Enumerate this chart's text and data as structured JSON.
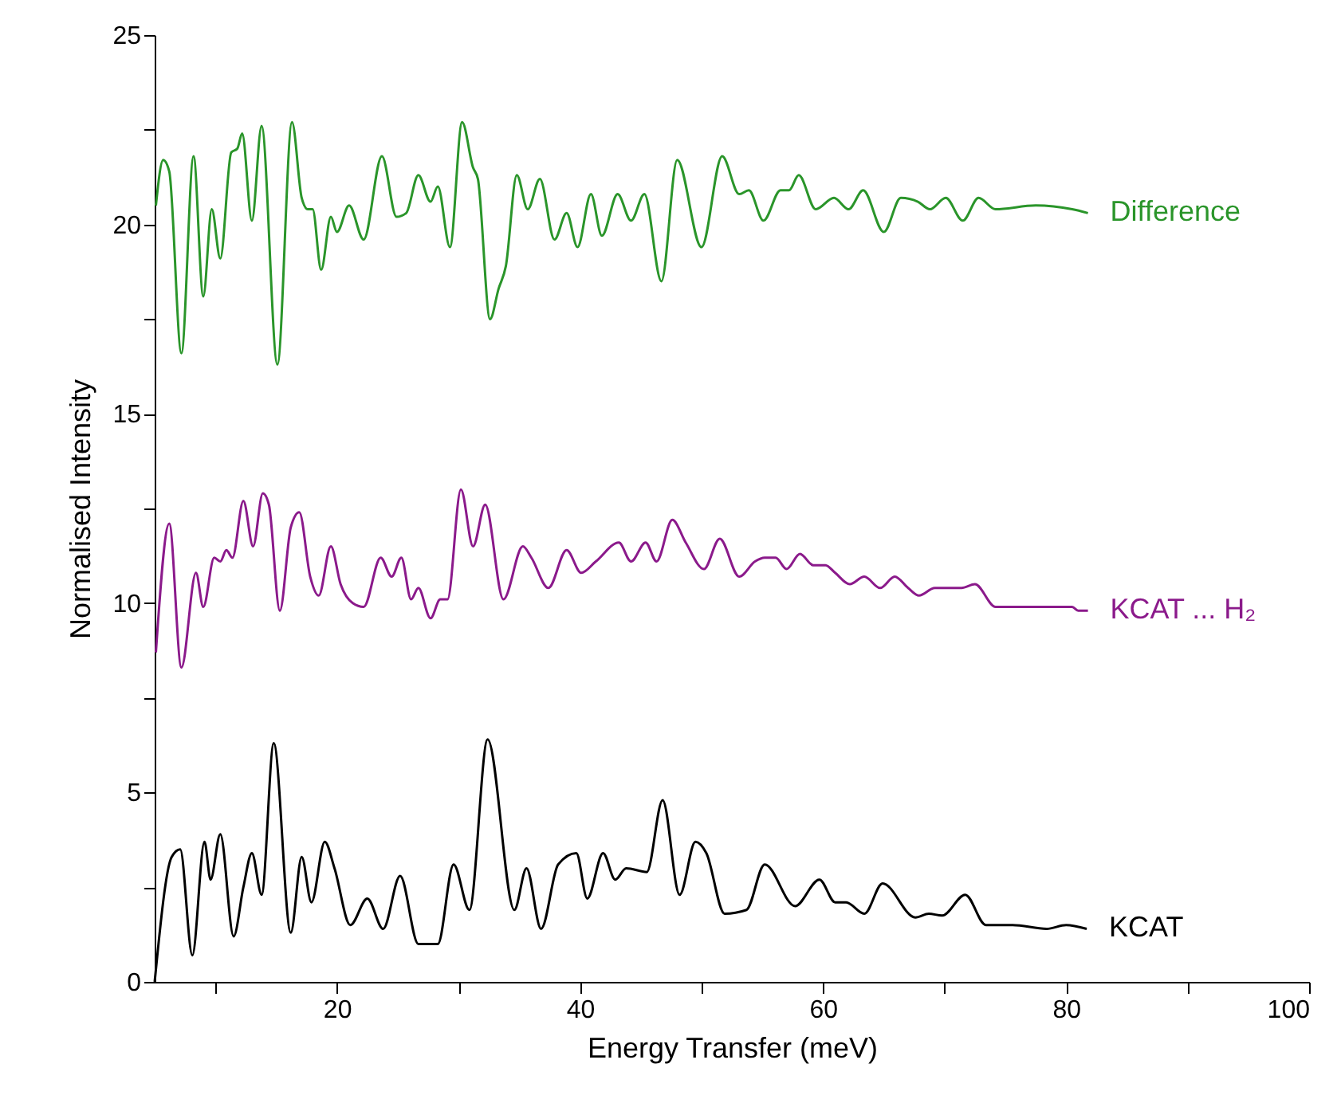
{
  "chart_data": {
    "type": "line",
    "xlabel": "Energy Transfer (meV)",
    "ylabel": "Normalised Intensity",
    "xlim": [
      5,
      100
    ],
    "ylim": [
      0,
      25
    ],
    "xticks": [
      {
        "value": 10,
        "label": null
      },
      20,
      {
        "value": 30,
        "label": null
      },
      40,
      {
        "value": 50,
        "label": null
      },
      60,
      {
        "value": 70,
        "label": null
      },
      80,
      {
        "value": 90,
        "label": null
      },
      100
    ],
    "yticks": [
      0,
      {
        "value": 2.5,
        "label": null
      },
      5,
      {
        "value": 7.5,
        "label": null
      },
      10,
      {
        "value": 12.5,
        "label": null
      },
      15,
      {
        "value": 17.5,
        "label": null
      },
      20,
      {
        "value": 22.5,
        "label": null
      },
      25
    ],
    "grid": false,
    "marker": "none",
    "line_style": "solid",
    "series": [
      {
        "name": "KCAT",
        "color": "#000000",
        "x": [
          5,
          6.4,
          7.1,
          8.1,
          9.1,
          9.6,
          10.4,
          11.5,
          12.3,
          13.0,
          13.8,
          14.8,
          16.2,
          17.1,
          17.9,
          19.0,
          19.8,
          21.1,
          22.5,
          23.8,
          25.2,
          26.7,
          28.3,
          29.6,
          30.9,
          32.4,
          34.6,
          35.6,
          36.8,
          38.2,
          39.7,
          40.6,
          41.9,
          42.9,
          43.8,
          45.5,
          46.8,
          48.2,
          49.5,
          50.4,
          51.9,
          53.7,
          55.2,
          57.7,
          59.7,
          61.0,
          61.9,
          63.4,
          64.9,
          67.6,
          68.7,
          69.8,
          71.7,
          73.4,
          75.6,
          78.4,
          80.0,
          81.7
        ],
        "values": [
          0,
          3.3,
          3.5,
          0.7,
          3.7,
          2.7,
          3.9,
          1.2,
          2.5,
          3.4,
          2.3,
          6.3,
          1.3,
          3.3,
          2.1,
          3.7,
          3.0,
          1.5,
          2.2,
          1.4,
          2.8,
          1.0,
          1.0,
          3.1,
          1.9,
          6.4,
          1.9,
          3.0,
          1.4,
          3.1,
          3.4,
          2.2,
          3.4,
          2.7,
          3.0,
          2.9,
          4.8,
          2.3,
          3.7,
          3.4,
          1.8,
          1.9,
          3.1,
          2.0,
          2.7,
          2.1,
          2.1,
          1.8,
          2.6,
          1.7,
          1.8,
          1.75,
          2.3,
          1.5,
          1.5,
          1.4,
          1.5,
          1.4
        ]
      },
      {
        "name": "KCAT ... H₂",
        "color": "#8b1a8b",
        "x": [
          5.1,
          6.2,
          7.2,
          8.4,
          9.0,
          9.9,
          10.4,
          10.9,
          11.4,
          12.3,
          13.1,
          13.9,
          14.4,
          15.3,
          16.2,
          16.9,
          17.8,
          18.5,
          19.5,
          20.3,
          21.3,
          22.2,
          23.6,
          24.5,
          25.3,
          26.1,
          26.7,
          27.7,
          28.5,
          29.1,
          30.2,
          31.2,
          32.2,
          33.7,
          35.3,
          36.0,
          37.4,
          38.9,
          40.1,
          41.3,
          43.2,
          44.2,
          45.4,
          46.3,
          47.6,
          48.7,
          50.2,
          51.5,
          53.1,
          54.4,
          55.2,
          56.1,
          57.0,
          58.1,
          59.2,
          60.2,
          61.0,
          62.2,
          63.4,
          64.7,
          65.9,
          67.0,
          67.9,
          69.2,
          71.4,
          72.5,
          74.2,
          80.5,
          81.0,
          81.8
        ],
        "values": [
          8.7,
          12.1,
          8.3,
          10.8,
          9.9,
          11.2,
          11.1,
          11.4,
          11.2,
          12.7,
          11.5,
          12.9,
          12.6,
          9.8,
          12.0,
          12.4,
          10.7,
          10.2,
          11.5,
          10.5,
          10.0,
          9.9,
          11.2,
          10.7,
          11.2,
          10.1,
          10.4,
          9.6,
          10.1,
          10.1,
          13.0,
          11.5,
          12.6,
          10.1,
          11.5,
          11.2,
          10.4,
          11.4,
          10.8,
          11.1,
          11.6,
          11.1,
          11.6,
          11.1,
          12.2,
          11.6,
          10.9,
          11.7,
          10.7,
          11.1,
          11.2,
          11.2,
          10.9,
          11.3,
          11.0,
          11.0,
          10.8,
          10.5,
          10.7,
          10.4,
          10.7,
          10.4,
          10.2,
          10.4,
          10.4,
          10.5,
          9.9,
          9.9,
          9.8,
          9.8
        ]
      },
      {
        "name": "Difference",
        "color": "#2a952a",
        "x": [
          5.1,
          5.7,
          6.2,
          7.2,
          8.2,
          9.0,
          9.7,
          10.4,
          11.3,
          11.8,
          12.2,
          13.0,
          13.8,
          15.1,
          16.3,
          17.1,
          17.6,
          18.0,
          18.7,
          19.5,
          20.0,
          21.0,
          22.2,
          23.7,
          24.9,
          25.7,
          26.7,
          27.7,
          28.3,
          29.3,
          30.3,
          31.2,
          31.6,
          32.6,
          33.3,
          33.9,
          34.8,
          35.7,
          36.7,
          37.9,
          38.9,
          39.8,
          40.9,
          41.8,
          43.1,
          44.2,
          45.3,
          46.7,
          48.0,
          50.0,
          51.7,
          53.1,
          53.9,
          55.1,
          56.5,
          57.2,
          58.0,
          59.4,
          60.9,
          62.1,
          63.3,
          65.0,
          66.4,
          67.8,
          68.8,
          70.1,
          71.5,
          72.8,
          74.2,
          77.5,
          80.5,
          81.8
        ],
        "values": [
          20.5,
          21.7,
          21.4,
          16.6,
          21.8,
          18.1,
          20.4,
          19.1,
          21.9,
          22.0,
          22.4,
          20.1,
          22.6,
          16.3,
          22.7,
          20.7,
          20.4,
          20.4,
          18.8,
          20.2,
          19.8,
          20.5,
          19.6,
          21.8,
          20.2,
          20.3,
          21.3,
          20.6,
          21.0,
          19.4,
          22.7,
          21.5,
          21.2,
          17.5,
          18.3,
          18.9,
          21.3,
          20.4,
          21.2,
          19.6,
          20.3,
          19.4,
          20.8,
          19.7,
          20.8,
          20.1,
          20.8,
          18.5,
          21.7,
          19.4,
          21.8,
          20.8,
          20.9,
          20.1,
          20.9,
          20.9,
          21.3,
          20.4,
          20.7,
          20.4,
          20.9,
          19.8,
          20.7,
          20.6,
          20.4,
          20.7,
          20.1,
          20.7,
          20.4,
          20.5,
          20.4,
          20.3
        ]
      }
    ]
  }
}
